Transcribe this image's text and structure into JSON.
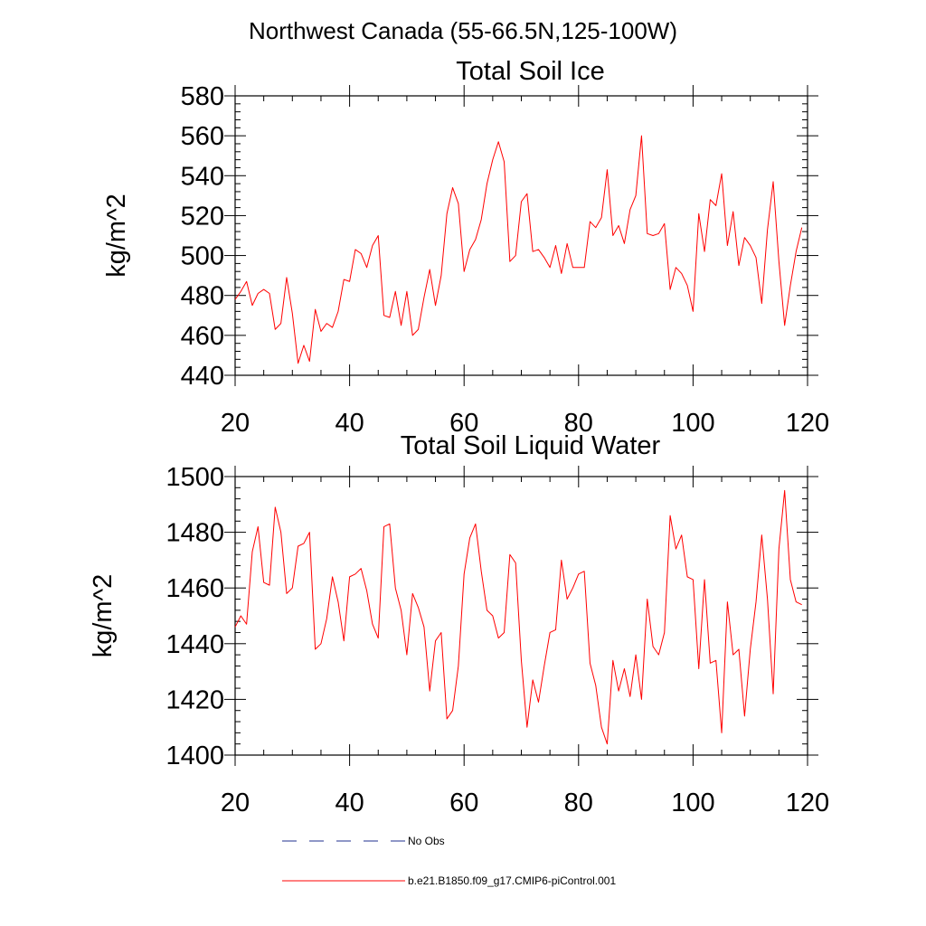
{
  "figure_title": "Northwest Canada (55-66.5N,125-100W)",
  "colors": {
    "model": "#ff0000",
    "obs": "#1f2f8f",
    "axis": "#000000"
  },
  "legend": {
    "obs_label": "No Obs",
    "model_label": "b.e21.B1850.f09_g17.CMIP6-piControl.001"
  },
  "chart_data": [
    {
      "type": "line",
      "title": "Total Soil Ice",
      "ylabel": "kg/m^2",
      "xlabel": "",
      "xlim": [
        20,
        120
      ],
      "ylim": [
        440,
        580
      ],
      "xticks": [
        20,
        40,
        60,
        80,
        100,
        120
      ],
      "yticks": [
        440,
        460,
        480,
        500,
        520,
        540,
        560,
        580
      ],
      "x_start": 20,
      "series": [
        {
          "name": "b.e21.B1850.f09_g17.CMIP6-piControl.001",
          "values": [
            478,
            482,
            487,
            475,
            481,
            483,
            481,
            463,
            466,
            489,
            471,
            446,
            455,
            447,
            473,
            462,
            466,
            464,
            472,
            488,
            487,
            503,
            501,
            494,
            505,
            510,
            470,
            469,
            482,
            465,
            482,
            460,
            463,
            479,
            493,
            475,
            490,
            521,
            534,
            526,
            492,
            503,
            508,
            518,
            536,
            548,
            557,
            547,
            497,
            500,
            527,
            531,
            502,
            503,
            499,
            494,
            505,
            491,
            506,
            494,
            494,
            494,
            517,
            514,
            519,
            543,
            510,
            515,
            506,
            523,
            530,
            560,
            511,
            510,
            511,
            516,
            483,
            494,
            491,
            485,
            472,
            521,
            502,
            528,
            525,
            541,
            505,
            522,
            495,
            509,
            505,
            499,
            476,
            513,
            537,
            497,
            465,
            485,
            502,
            514
          ]
        }
      ]
    },
    {
      "type": "line",
      "title": "Total Soil Liquid Water",
      "ylabel": "kg/m^2",
      "xlabel": "",
      "xlim": [
        20,
        120
      ],
      "ylim": [
        1400,
        1500
      ],
      "xticks": [
        20,
        40,
        60,
        80,
        100,
        120
      ],
      "yticks": [
        1400,
        1420,
        1440,
        1460,
        1480,
        1500
      ],
      "x_start": 20,
      "series": [
        {
          "name": "b.e21.B1850.f09_g17.CMIP6-piControl.001",
          "values": [
            1446,
            1450,
            1447,
            1473,
            1482,
            1462,
            1461,
            1489,
            1480,
            1458,
            1460,
            1475,
            1476,
            1480,
            1438,
            1440,
            1449,
            1464,
            1455,
            1441,
            1464,
            1465,
            1467,
            1459,
            1447,
            1442,
            1482,
            1483,
            1460,
            1452,
            1436,
            1458,
            1453,
            1446,
            1423,
            1441,
            1444,
            1413,
            1416,
            1432,
            1465,
            1478,
            1483,
            1466,
            1452,
            1450,
            1442,
            1444,
            1472,
            1469,
            1434,
            1410,
            1427,
            1419,
            1432,
            1444,
            1445,
            1470,
            1456,
            1460,
            1465,
            1466,
            1433,
            1425,
            1410,
            1404,
            1434,
            1423,
            1431,
            1421,
            1436,
            1420,
            1456,
            1439,
            1436,
            1444,
            1486,
            1474,
            1479,
            1464,
            1463,
            1431,
            1463,
            1433,
            1434,
            1408,
            1455,
            1436,
            1438,
            1414,
            1438,
            1455,
            1479,
            1456,
            1422,
            1474,
            1495,
            1463,
            1455,
            1454
          ]
        }
      ]
    }
  ]
}
